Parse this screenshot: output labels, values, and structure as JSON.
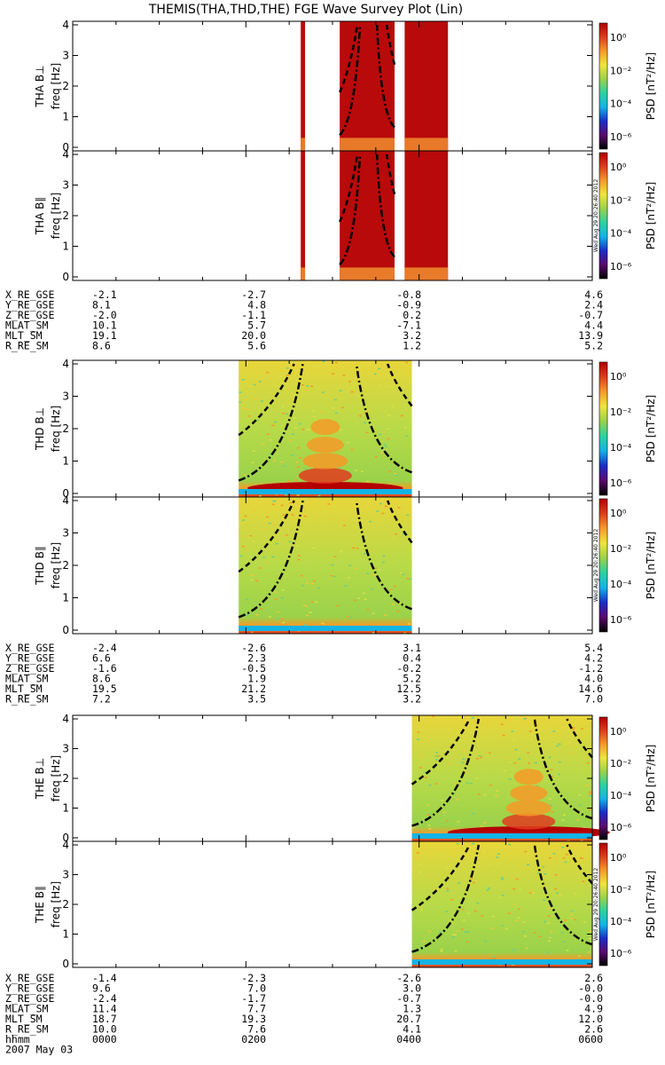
{
  "title": "THEMIS(THA,THD,THE) FGE Wave Survey Plot (Lin)",
  "colors": {
    "background": "#ffffff",
    "axes": "#000000",
    "colorbar": [
      "#000000",
      "#5a0a6e",
      "#1a2cc8",
      "#12b4e6",
      "#2ad2a0",
      "#9ad24a",
      "#f0e63a",
      "#f59a28",
      "#e03c1e",
      "#b40000"
    ]
  },
  "panel_tick_labels": [
    "0",
    "1",
    "2",
    "3",
    "4"
  ],
  "colorbar": {
    "label": "PSD [nT²/Hz]",
    "tick_labels": [
      "10⁰",
      "10⁻²",
      "10⁻⁴",
      "10⁻⁶"
    ],
    "date_stamp": "Wed Aug 29 20:26:40 2012"
  },
  "chart_data": [
    {
      "type": "heatmap",
      "probe": "THA",
      "panels": [
        {
          "component": "THA B⊥",
          "freq_label": "freq [Hz]",
          "ylim": [
            0,
            4
          ],
          "data_intervals_hhmm": [
            [
              "0238",
              "0241"
            ],
            [
              "0305",
              "0343"
            ],
            [
              "0350",
              "0420"
            ]
          ]
        },
        {
          "component": "THA B∥",
          "freq_label": "freq [Hz]",
          "ylim": [
            0,
            4
          ],
          "data_intervals_hhmm": [
            [
              "0238",
              "0241"
            ],
            [
              "0305",
              "0343"
            ],
            [
              "0350",
              "0420"
            ]
          ]
        }
      ],
      "ephemeris": {
        "rows": [
          {
            "label": "X_RE_GSE",
            "values": [
              "-2.1",
              "-2.7",
              "-0.8",
              "4.6"
            ]
          },
          {
            "label": "Y_RE_GSE",
            "values": [
              "8.1",
              "4.8",
              "-0.9",
              "2.4"
            ]
          },
          {
            "label": "Z_RE_GSE",
            "values": [
              "-2.0",
              "-1.1",
              "0.2",
              "-0.7"
            ]
          },
          {
            "label": "MLAT_SM",
            "values": [
              "10.1",
              "5.7",
              "-7.1",
              "4.4"
            ]
          },
          {
            "label": "MLT_SM",
            "values": [
              "19.1",
              "20.0",
              "3.2",
              "13.9"
            ]
          },
          {
            "label": "R_RE_SM",
            "values": [
              "8.6",
              "5.6",
              "1.2",
              "5.2"
            ]
          }
        ]
      }
    },
    {
      "type": "heatmap",
      "probe": "THD",
      "panels": [
        {
          "component": "THD B⊥",
          "freq_label": "freq [Hz]",
          "ylim": [
            0,
            4
          ],
          "data_intervals_hhmm": [
            [
              "0155",
              "0355"
            ]
          ]
        },
        {
          "component": "THD B∥",
          "freq_label": "freq [Hz]",
          "ylim": [
            0,
            4
          ],
          "data_intervals_hhmm": [
            [
              "0155",
              "0355"
            ]
          ]
        }
      ],
      "ephemeris": {
        "rows": [
          {
            "label": "X_RE_GSE",
            "values": [
              "-2.4",
              "-2.6",
              "3.1",
              "5.4"
            ]
          },
          {
            "label": "Y_RE_GSE",
            "values": [
              "6.6",
              "2.3",
              "0.4",
              "4.2"
            ]
          },
          {
            "label": "Z_RE_GSE",
            "values": [
              "-1.6",
              "-0.5",
              "-0.2",
              "-1.2"
            ]
          },
          {
            "label": "MLAT_SM",
            "values": [
              "8.6",
              "1.9",
              "5.2",
              "4.0"
            ]
          },
          {
            "label": "MLT_SM",
            "values": [
              "19.5",
              "21.2",
              "12.5",
              "14.6"
            ]
          },
          {
            "label": "R_RE_SM",
            "values": [
              "7.2",
              "3.5",
              "3.2",
              "7.0"
            ]
          }
        ]
      }
    },
    {
      "type": "heatmap",
      "probe": "THE",
      "panels": [
        {
          "component": "THE B⊥",
          "freq_label": "freq [Hz]",
          "ylim": [
            0,
            4
          ],
          "data_intervals_hhmm": [
            [
              "0355",
              "0600"
            ]
          ]
        },
        {
          "component": "THE B∥",
          "freq_label": "freq [Hz]",
          "ylim": [
            0,
            4
          ],
          "data_intervals_hhmm": [
            [
              "0355",
              "0600"
            ]
          ]
        }
      ],
      "ephemeris": {
        "rows": [
          {
            "label": "X_RE_GSE",
            "values": [
              "-1.4",
              "-2.3",
              "-2.6",
              "2.6"
            ]
          },
          {
            "label": "Y_RE_GSE",
            "values": [
              "9.6",
              "7.0",
              "3.0",
              "-0.0"
            ]
          },
          {
            "label": "Z_RE_GSE",
            "values": [
              "-2.4",
              "-1.7",
              "-0.7",
              "-0.0"
            ]
          },
          {
            "label": "MLAT_SM",
            "values": [
              "11.4",
              "7.7",
              "1.3",
              "4.9"
            ]
          },
          {
            "label": "MLT_SM",
            "values": [
              "18.7",
              "19.3",
              "20.7",
              "12.0"
            ]
          },
          {
            "label": "R_RE_SM",
            "values": [
              "10.0",
              "7.6",
              "4.1",
              "2.6"
            ]
          }
        ],
        "time_row": {
          "label": "hhmm",
          "values": [
            "0000",
            "0200",
            "0400",
            "0600"
          ]
        },
        "date": "2007 May 03"
      }
    }
  ]
}
